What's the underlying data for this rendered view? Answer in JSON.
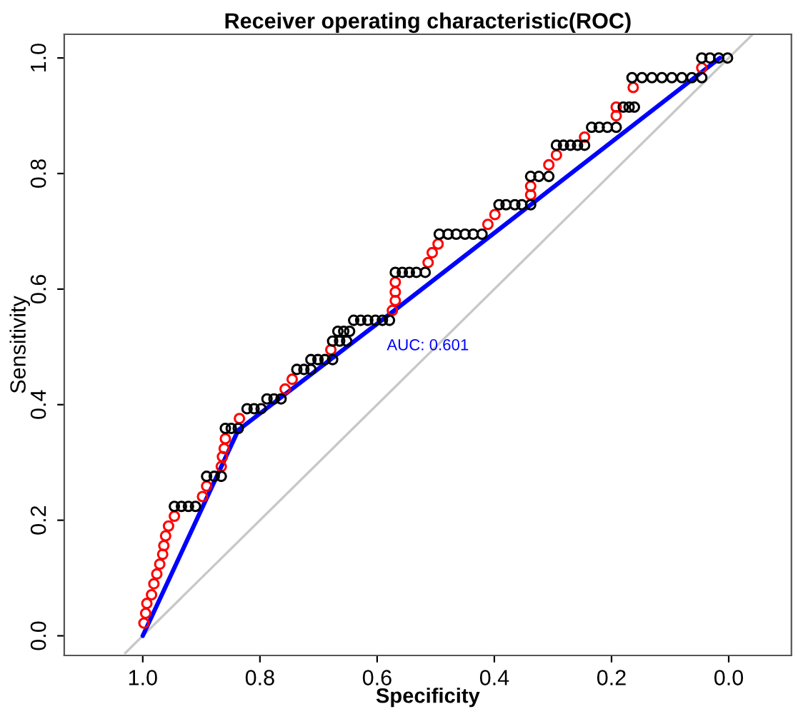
{
  "chart_data": {
    "type": "line",
    "title": "Receiver operating characteristic(ROC)",
    "xlabel": "Specificity",
    "ylabel": "Sensitivity",
    "xlim": [
      1.134,
      -0.107
    ],
    "ylim": [
      -0.034,
      1.041
    ],
    "xticks": [
      {
        "value": 1,
        "label": "1.0"
      },
      {
        "value": 0.8,
        "label": "0.8"
      },
      {
        "value": 0.6,
        "label": "0.6"
      },
      {
        "value": 0.4,
        "label": "0.4"
      },
      {
        "value": 0.2,
        "label": "0.2"
      },
      {
        "value": 0,
        "label": "0.0"
      }
    ],
    "yticks": [
      {
        "value": 0,
        "label": "0.0"
      },
      {
        "value": 0.2,
        "label": "0.2"
      },
      {
        "value": 0.4,
        "label": "0.4"
      },
      {
        "value": 0.6,
        "label": "0.6"
      },
      {
        "value": 0.8,
        "label": "0.8"
      },
      {
        "value": 1,
        "label": "1.0"
      }
    ],
    "grid": false,
    "legend": false,
    "annotations": [
      "AUC: 0.601"
    ],
    "series": [
      {
        "marker": "none",
        "color": "#c8c8c8",
        "x": [
          1.03,
          -0.04
        ],
        "values": [
          -0.03,
          1.04
        ]
      },
      {
        "marker": "none",
        "color": "#0000ff",
        "x": [
          1.0,
          0.837,
          0.6,
          0.015
        ],
        "values": [
          0.0,
          0.356,
          0.54,
          1.0
        ]
      },
      {
        "type": "scatter",
        "marker": "circle",
        "color": "#ff0000",
        "x": [
          0.998,
          0.995,
          0.993,
          0.985,
          0.981,
          0.976,
          0.971,
          0.966,
          0.964,
          0.961,
          0.956,
          0.946,
          0.898,
          0.891,
          0.866,
          0.864,
          0.861,
          0.859,
          0.835,
          0.757,
          0.745,
          0.679,
          0.574,
          0.569,
          0.569,
          0.569,
          0.513,
          0.506,
          0.496,
          0.411,
          0.399,
          0.338,
          0.338,
          0.307,
          0.294,
          0.246,
          0.192,
          0.192,
          0.163,
          0.046
        ],
        "values": [
          0.022,
          0.039,
          0.056,
          0.071,
          0.09,
          0.107,
          0.124,
          0.141,
          0.156,
          0.173,
          0.19,
          0.207,
          0.241,
          0.259,
          0.293,
          0.31,
          0.324,
          0.341,
          0.376,
          0.427,
          0.444,
          0.495,
          0.563,
          0.58,
          0.595,
          0.612,
          0.646,
          0.663,
          0.678,
          0.712,
          0.729,
          0.763,
          0.778,
          0.815,
          0.832,
          0.863,
          0.9,
          0.915,
          0.949,
          0.983
        ]
      },
      {
        "type": "scatter",
        "marker": "circle",
        "color": "#000000",
        "x": [
          0.946,
          0.934,
          0.922,
          0.91,
          0.891,
          0.878,
          0.866,
          0.859,
          0.849,
          0.837,
          0.822,
          0.81,
          0.798,
          0.788,
          0.776,
          0.764,
          0.737,
          0.725,
          0.713,
          0.713,
          0.701,
          0.689,
          0.676,
          0.676,
          0.664,
          0.652,
          0.667,
          0.657,
          0.647,
          0.64,
          0.628,
          0.616,
          0.603,
          0.591,
          0.579,
          0.569,
          0.557,
          0.545,
          0.533,
          0.518,
          0.494,
          0.479,
          0.465,
          0.45,
          0.436,
          0.421,
          0.392,
          0.38,
          0.365,
          0.353,
          0.338,
          0.338,
          0.324,
          0.307,
          0.294,
          0.282,
          0.27,
          0.258,
          0.246,
          0.234,
          0.221,
          0.207,
          0.192,
          0.18,
          0.17,
          0.161,
          0.165,
          0.148,
          0.131,
          0.114,
          0.097,
          0.08,
          0.063,
          0.046,
          0.046,
          0.032,
          0.017,
          0.002
        ],
        "values": [
          0.224,
          0.224,
          0.224,
          0.224,
          0.276,
          0.276,
          0.276,
          0.359,
          0.359,
          0.359,
          0.393,
          0.393,
          0.393,
          0.41,
          0.41,
          0.41,
          0.461,
          0.461,
          0.461,
          0.478,
          0.478,
          0.478,
          0.478,
          0.51,
          0.51,
          0.51,
          0.527,
          0.527,
          0.527,
          0.546,
          0.546,
          0.546,
          0.546,
          0.546,
          0.546,
          0.629,
          0.629,
          0.629,
          0.629,
          0.629,
          0.695,
          0.695,
          0.695,
          0.695,
          0.695,
          0.695,
          0.746,
          0.746,
          0.746,
          0.746,
          0.746,
          0.795,
          0.795,
          0.795,
          0.849,
          0.849,
          0.849,
          0.849,
          0.849,
          0.88,
          0.88,
          0.88,
          0.88,
          0.915,
          0.915,
          0.915,
          0.966,
          0.966,
          0.966,
          0.966,
          0.966,
          0.966,
          0.966,
          0.966,
          1.0,
          1.0,
          1.0,
          1.0
        ]
      }
    ]
  }
}
